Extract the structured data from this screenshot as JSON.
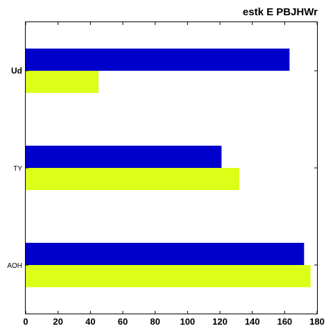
{
  "chart_data": {
    "type": "bar",
    "orientation": "horizontal",
    "title": "estk E PBJHWr",
    "xlabel": "",
    "ylabel": "",
    "categories": [
      "AOH",
      "TY",
      "Ud"
    ],
    "category_emphasis": [
      false,
      false,
      true
    ],
    "series": [
      {
        "values": [
          172,
          121,
          163
        ],
        "color": "#0000cc"
      },
      {
        "values": [
          176,
          132,
          45
        ],
        "color": "#dcff1a"
      }
    ],
    "xlim": [
      0,
      180
    ],
    "xticks": [
      0,
      20,
      40,
      60,
      80,
      100,
      120,
      140,
      160,
      180
    ],
    "xtick_labels": [
      "0",
      "20",
      "40",
      "60",
      "80",
      "100",
      "120",
      "140",
      "160",
      "180"
    ],
    "grid": false,
    "legend": "none"
  }
}
